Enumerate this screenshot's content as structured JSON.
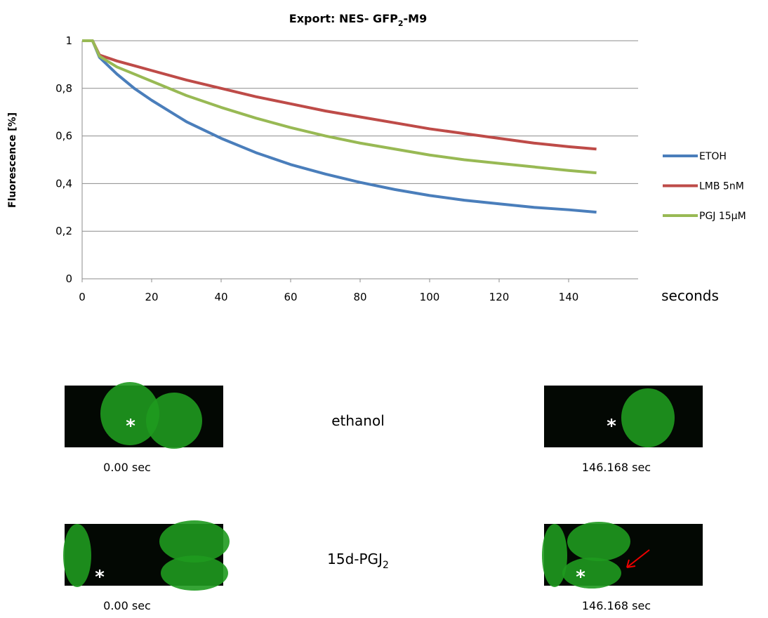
{
  "chart_data": {
    "type": "line",
    "title": [
      "Export: NES- GFP",
      "2",
      "-M9"
    ],
    "y_label": "Fluorescence [%]",
    "x_label": "seconds",
    "x": [
      0,
      3,
      5,
      10,
      15,
      20,
      30,
      40,
      50,
      60,
      70,
      80,
      90,
      100,
      110,
      120,
      130,
      140,
      148
    ],
    "series": [
      {
        "name": "ETOH",
        "color": "#4a7ebb",
        "values": [
          1,
          1,
          0.93,
          0.86,
          0.8,
          0.75,
          0.66,
          0.59,
          0.53,
          0.48,
          0.44,
          0.405,
          0.375,
          0.35,
          0.33,
          0.315,
          0.3,
          0.29,
          0.28
        ]
      },
      {
        "name": "LMB 5nM",
        "color": "#be4b48",
        "values": [
          1,
          1,
          0.94,
          0.915,
          0.895,
          0.875,
          0.835,
          0.8,
          0.765,
          0.735,
          0.705,
          0.68,
          0.655,
          0.63,
          0.61,
          0.59,
          0.57,
          0.555,
          0.545
        ]
      },
      {
        "name": "PGJ 15µM",
        "color": "#98b954",
        "values": [
          1,
          1,
          0.935,
          0.89,
          0.86,
          0.83,
          0.77,
          0.72,
          0.675,
          0.635,
          0.6,
          0.57,
          0.545,
          0.52,
          0.5,
          0.485,
          0.47,
          0.455,
          0.445
        ]
      }
    ],
    "xlim": [
      0,
      160
    ],
    "xticks": [
      0,
      20,
      40,
      60,
      80,
      100,
      120,
      140
    ],
    "ylim": [
      0,
      1
    ],
    "yticks": [
      0,
      {
        "value": 0.2,
        "label": "0,2"
      },
      {
        "value": 0.4,
        "label": "0,4"
      },
      {
        "value": 0.6,
        "label": "0,6"
      },
      {
        "value": 0.8,
        "label": "0,8"
      },
      1
    ],
    "grid": true,
    "legend": "right"
  },
  "panels": [
    {
      "label": [
        "ethanol",
        ""
      ],
      "marker": "*",
      "captions": [
        "0.00 sec",
        "146.168 sec"
      ]
    },
    {
      "label": [
        "15d-PGJ",
        "2"
      ],
      "marker": "*",
      "captions": [
        "0.00 sec",
        "146.168 sec"
      ]
    }
  ]
}
